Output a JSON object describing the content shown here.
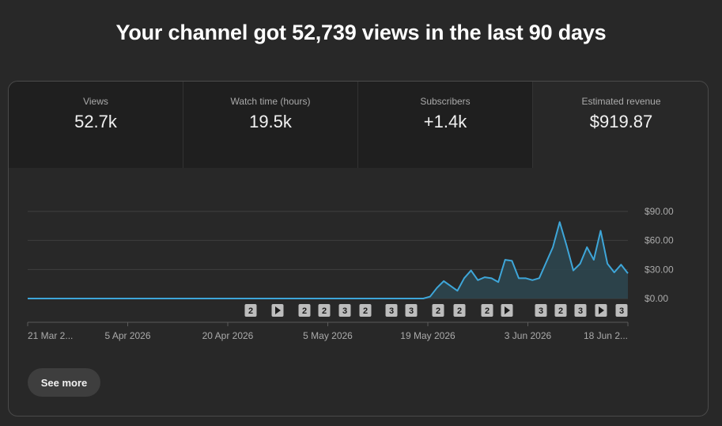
{
  "headline": "Your channel got 52,739 views in the last 90 days",
  "metrics": [
    {
      "label": "Views",
      "value": "52.7k"
    },
    {
      "label": "Watch time (hours)",
      "value": "19.5k"
    },
    {
      "label": "Subscribers",
      "value": "+1.4k"
    },
    {
      "label": "Estimated revenue",
      "value": "$919.87"
    }
  ],
  "see_more_label": "See more",
  "colors": {
    "line": "#3ea6d9",
    "area": "#2d4650",
    "grid": "#3f3f3f"
  },
  "chart_data": {
    "type": "area",
    "title": "",
    "ylabel": "",
    "ylim": [
      0,
      90
    ],
    "y_ticks": [
      "$0.00",
      "$30.00",
      "$60.00",
      "$90.00"
    ],
    "x_tick_labels": [
      "21 Mar 2...",
      "5 Apr 2026",
      "20 Apr 2026",
      "5 May 2026",
      "19 May 2026",
      "3 Jun 2026",
      "18 Jun 2..."
    ],
    "series": [
      {
        "values": [
          0,
          0,
          0,
          0,
          0,
          0,
          0,
          0,
          0,
          0,
          0,
          0,
          0,
          0,
          0,
          0,
          0,
          0,
          0,
          0,
          0,
          0,
          0,
          0,
          0,
          0,
          0,
          0,
          0,
          0,
          0,
          0,
          0,
          0,
          0,
          0,
          0,
          0,
          0,
          0,
          0,
          0,
          0,
          0,
          0,
          0,
          0,
          0,
          0,
          0,
          0,
          0,
          0,
          0,
          0,
          0,
          0,
          0,
          0,
          2,
          11,
          18,
          13,
          8,
          21,
          29,
          19,
          22,
          21,
          17,
          40,
          39,
          21,
          21,
          19,
          21,
          37,
          53,
          79,
          55,
          29,
          36,
          53,
          40,
          70,
          36,
          27,
          35,
          26
        ]
      }
    ],
    "markers": [
      "2",
      "play",
      "2",
      "2",
      "3",
      "2",
      "3",
      "3",
      "2",
      "2",
      "2",
      "play",
      "3",
      "2",
      "3",
      "play",
      "3"
    ]
  }
}
